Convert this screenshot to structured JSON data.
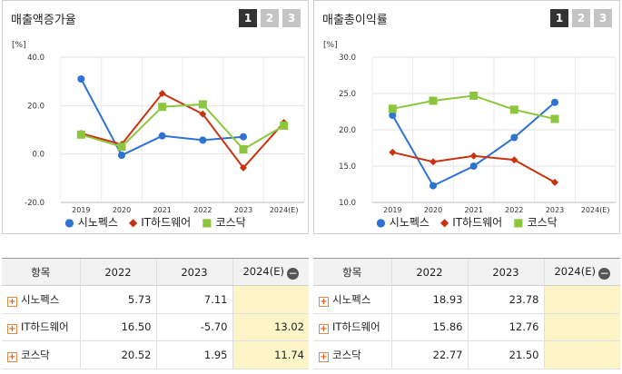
{
  "pager": [
    "1",
    "2",
    "3"
  ],
  "legend_markers": {
    "circle": "●",
    "diamond": "◆",
    "square": "■"
  },
  "colors": {
    "sinokeks": "#2e72d2",
    "ithw": "#c8330f",
    "kosdaq": "#8cc63f"
  },
  "chart_data": [
    {
      "type": "line",
      "title": "매출액증가율",
      "ylabel": "[%]",
      "categories": [
        "2019",
        "2020",
        "2021",
        "2022",
        "2023",
        "2024(E)"
      ],
      "ylim": [
        -20,
        40
      ],
      "yticks": [
        "40.0",
        "20.0",
        "0.0",
        "-20.0"
      ],
      "ytick_values": [
        40,
        20,
        0,
        -20
      ],
      "series": [
        {
          "name": "시노펙스",
          "marker": "circle",
          "color": "#2e72d2",
          "values": [
            31.0,
            -0.5,
            7.5,
            5.73,
            7.11,
            null
          ]
        },
        {
          "name": "IT하드웨어",
          "marker": "diamond",
          "color": "#c8330f",
          "values": [
            8.5,
            4.0,
            25.0,
            16.5,
            -5.7,
            13.02
          ]
        },
        {
          "name": "코스닥",
          "marker": "square",
          "color": "#8cc63f",
          "values": [
            8.0,
            3.0,
            19.5,
            20.52,
            1.95,
            11.74
          ]
        }
      ]
    },
    {
      "type": "line",
      "title": "매출총이익률",
      "ylabel": "[%]",
      "categories": [
        "2019",
        "2020",
        "2021",
        "2022",
        "2023",
        "2024(E)"
      ],
      "ylim": [
        10,
        30
      ],
      "yticks": [
        "30.0",
        "25.0",
        "20.0",
        "15.0",
        "10.0"
      ],
      "ytick_values": [
        30,
        25,
        20,
        15,
        10
      ],
      "series": [
        {
          "name": "시노펙스",
          "marker": "circle",
          "color": "#2e72d2",
          "values": [
            22.0,
            12.3,
            15.0,
            18.93,
            23.78,
            null
          ]
        },
        {
          "name": "IT하드웨어",
          "marker": "diamond",
          "color": "#c8330f",
          "values": [
            16.9,
            15.6,
            16.4,
            15.86,
            12.76,
            null
          ]
        },
        {
          "name": "코스닥",
          "marker": "square",
          "color": "#8cc63f",
          "values": [
            22.9,
            24.0,
            24.7,
            22.77,
            21.5,
            null
          ]
        }
      ]
    }
  ],
  "tables": [
    {
      "headers": [
        "항목",
        "2022",
        "2023",
        "2024(E)"
      ],
      "rows": [
        {
          "name": "시노펙스",
          "v": [
            "5.73",
            "7.11",
            ""
          ]
        },
        {
          "name": "IT하드웨어",
          "v": [
            "16.50",
            "-5.70",
            "13.02"
          ]
        },
        {
          "name": "코스닥",
          "v": [
            "20.52",
            "1.95",
            "11.74"
          ]
        }
      ]
    },
    {
      "headers": [
        "항목",
        "2022",
        "2023",
        "2024(E)"
      ],
      "rows": [
        {
          "name": "시노펙스",
          "v": [
            "18.93",
            "23.78",
            ""
          ]
        },
        {
          "name": "IT하드웨어",
          "v": [
            "15.86",
            "12.76",
            ""
          ]
        },
        {
          "name": "코스닥",
          "v": [
            "22.77",
            "21.50",
            ""
          ]
        }
      ]
    }
  ]
}
